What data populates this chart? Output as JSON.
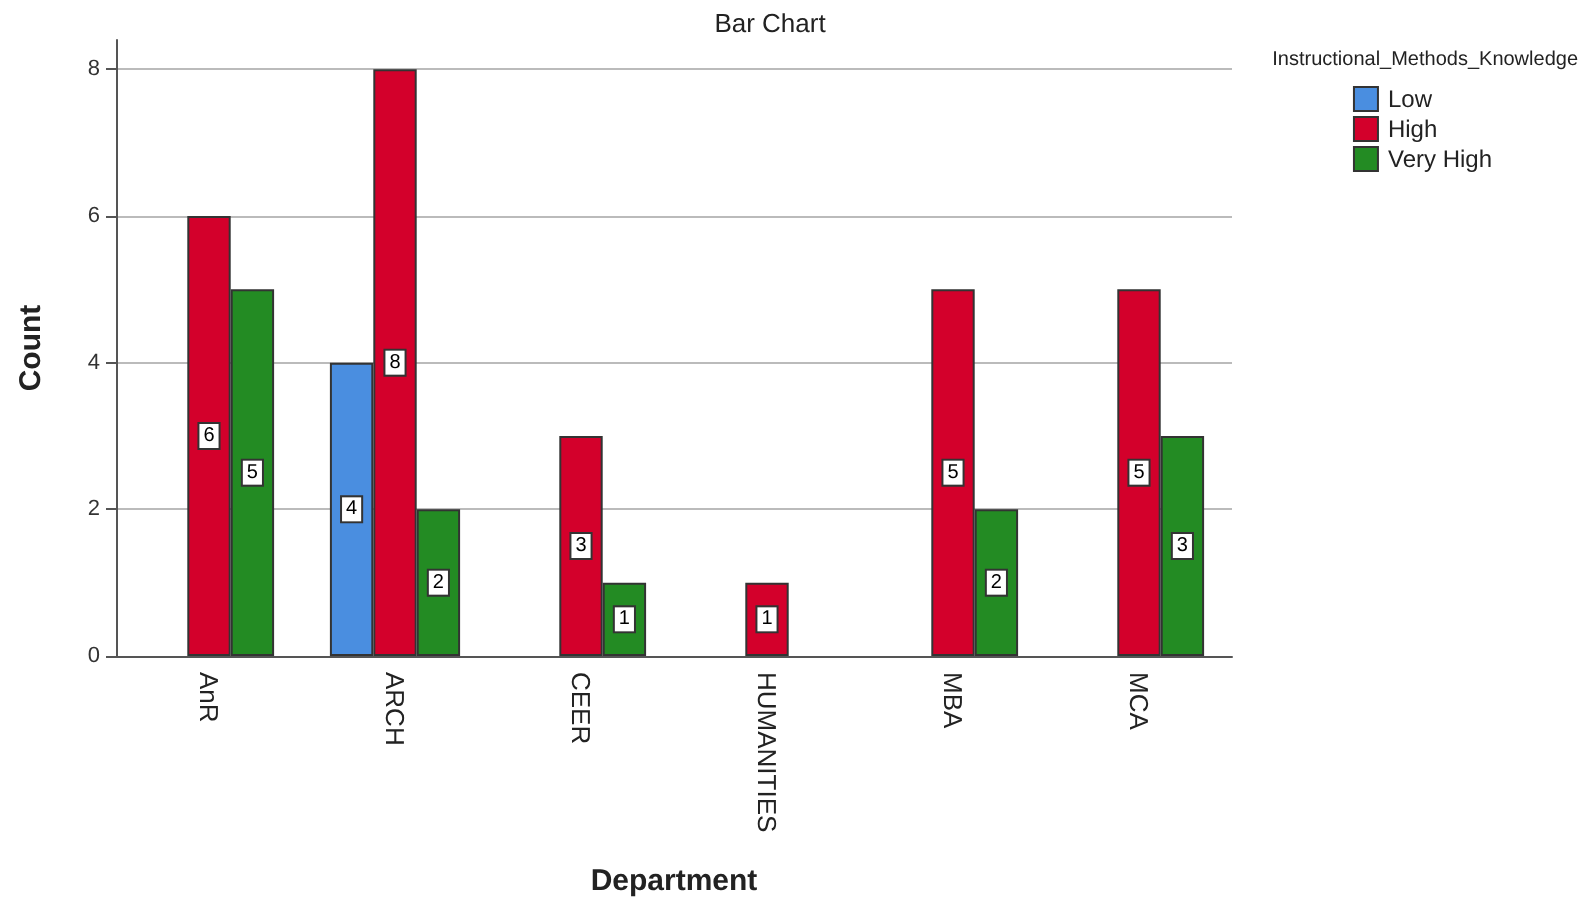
{
  "chart_data": {
    "type": "bar",
    "title": "Bar Chart",
    "xlabel": "Department",
    "ylabel": "Count",
    "legend_title": "Instructional_Methods_Knowledge",
    "categories": [
      "AnR",
      "ARCH",
      "CEER",
      "HUMANITIES",
      "MBA",
      "MCA"
    ],
    "series": [
      {
        "name": "Low",
        "color": "#4a8ee0",
        "values": [
          null,
          4,
          null,
          null,
          null,
          null
        ]
      },
      {
        "name": "High",
        "color": "#d3002b",
        "values": [
          6,
          8,
          3,
          1,
          5,
          5
        ]
      },
      {
        "name": "Very High",
        "color": "#238b23",
        "values": [
          5,
          2,
          1,
          null,
          2,
          3
        ]
      }
    ],
    "ylim": [
      0,
      8.4
    ],
    "yticks": [
      0,
      2,
      4,
      6,
      8
    ],
    "grid": "y",
    "legend": "top right",
    "data_labels": true
  }
}
